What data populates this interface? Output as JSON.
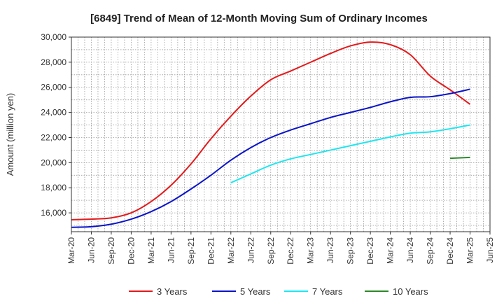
{
  "chart_data": {
    "type": "line",
    "title": "[6849]  Trend of Mean of 12-Month Moving Sum of Ordinary Incomes",
    "xlabel": "",
    "ylabel": "Amount (million yen)",
    "ylim": [
      14500,
      30000
    ],
    "yticks": [
      16000,
      18000,
      20000,
      22000,
      24000,
      26000,
      28000,
      30000
    ],
    "ytick_labels": [
      "16,000",
      "18,000",
      "20,000",
      "22,000",
      "24,000",
      "26,000",
      "28,000",
      "30,000"
    ],
    "x": [
      "Mar-20",
      "Jun-20",
      "Sep-20",
      "Dec-20",
      "Mar-21",
      "Jun-21",
      "Sep-21",
      "Dec-21",
      "Mar-22",
      "Jun-22",
      "Sep-22",
      "Dec-22",
      "Mar-23",
      "Jun-23",
      "Sep-23",
      "Dec-23",
      "Mar-24",
      "Jun-24",
      "Sep-24",
      "Dec-24",
      "Mar-25",
      "Jun-25"
    ],
    "grid": true,
    "legend_position": "bottom",
    "series": [
      {
        "name": "3 Years",
        "color": "#e31a1c",
        "values": [
          15450,
          15500,
          15600,
          16000,
          16900,
          18200,
          19900,
          21900,
          23700,
          25300,
          26600,
          27300,
          28000,
          28700,
          29300,
          29600,
          29400,
          28600,
          26900,
          25800,
          24650,
          null
        ]
      },
      {
        "name": "5 Years",
        "color": "#0a14c8",
        "values": [
          14850,
          14900,
          15100,
          15500,
          16100,
          16900,
          17900,
          19000,
          20200,
          21200,
          22000,
          22600,
          23100,
          23600,
          24000,
          24400,
          24850,
          25200,
          25250,
          25500,
          25850,
          null
        ]
      },
      {
        "name": "7 Years",
        "color": "#1ee6f0",
        "values": [
          null,
          null,
          null,
          null,
          null,
          null,
          null,
          null,
          18400,
          19100,
          19800,
          20300,
          20650,
          21000,
          21350,
          21700,
          22050,
          22350,
          22450,
          22700,
          23000,
          null
        ]
      },
      {
        "name": "10 Years",
        "color": "#2a8a2a",
        "values": [
          null,
          null,
          null,
          null,
          null,
          null,
          null,
          null,
          null,
          null,
          null,
          null,
          null,
          null,
          null,
          null,
          null,
          null,
          null,
          20350,
          20420,
          null
        ]
      }
    ]
  }
}
